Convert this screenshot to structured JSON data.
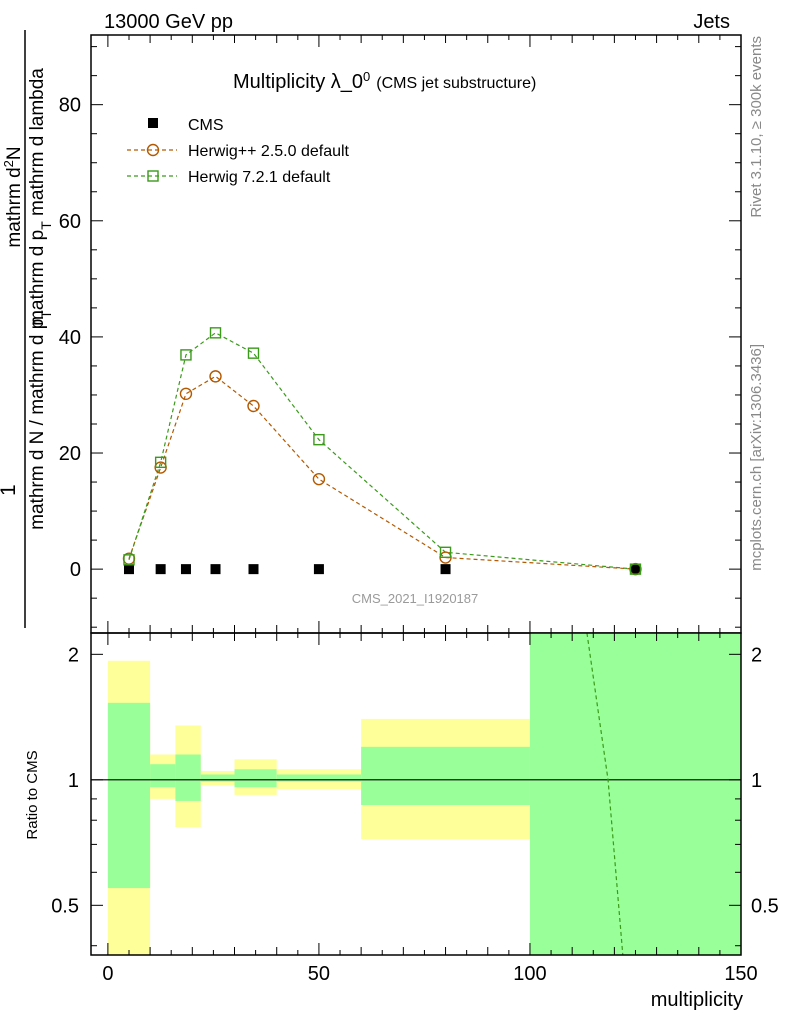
{
  "header": {
    "left": "13000 GeV pp",
    "right": "Jets"
  },
  "side_text": {
    "top": "Rivet 3.1.10, ≥ 300k events",
    "bottom": "mcplots.cern.ch [arXiv:1306.3436]"
  },
  "watermark": "CMS_2021_I1920187",
  "chart_data": [
    {
      "type": "line",
      "title": "Multiplicity λ_0",
      "title_superscript": "0",
      "subtitle": "(CMS jet substructure)",
      "ylabel_fraction": {
        "numerator_top": "1",
        "denominator_top": "mathrm d N / mathrm d p",
        "denominator_sub": "T",
        "numerator_main": "mathrm d",
        "numerator_sup": "2",
        "numerator_end": "N",
        "denominator_main": "mathrm d p",
        "denominator_main_sub": "T",
        "denominator_end": " mathrm d lambda"
      },
      "xlim": [
        -4,
        150
      ],
      "ylim": [
        -11,
        92
      ],
      "yticks": [
        0,
        20,
        40,
        60,
        80
      ],
      "legend_position": "top-left",
      "grid": false,
      "series": [
        {
          "name": "CMS",
          "color": "#000000",
          "marker": "filled-square",
          "x": [
            5,
            12.5,
            18.5,
            25.5,
            34.5,
            50,
            80,
            125
          ],
          "y": [
            0,
            0,
            0,
            0,
            0,
            0,
            0,
            0
          ]
        },
        {
          "name": "Herwig++ 2.5.0 default",
          "color": "#b35900",
          "marker": "open-circle",
          "x": [
            5,
            12.5,
            18.5,
            25.5,
            34.5,
            50,
            80,
            125
          ],
          "y": [
            1.8,
            17.5,
            30.2,
            33.2,
            28.1,
            15.5,
            2.0,
            0.0
          ]
        },
        {
          "name": "Herwig 7.2.1 default",
          "color": "#3a9a1a",
          "marker": "open-square",
          "x": [
            5,
            12.5,
            18.5,
            25.5,
            34.5,
            50,
            80,
            125
          ],
          "y": [
            1.6,
            18.4,
            36.9,
            40.7,
            37.2,
            22.3,
            2.9,
            0.0
          ]
        }
      ]
    },
    {
      "type": "area",
      "ylabel": "Ratio to CMS",
      "xlabel": "multiplicity",
      "xlim": [
        -4,
        150
      ],
      "ylim": [
        0.38,
        2.25
      ],
      "xticks": [
        0,
        50,
        100,
        150
      ],
      "yticks": [
        0.5,
        1,
        2
      ],
      "reference_line": 1,
      "bands": {
        "outer_color": "#ffff99",
        "inner_color": "#99ff99",
        "bins": [
          {
            "x0": 0,
            "x1": 10,
            "outer": [
              0.38,
              1.93
            ],
            "inner": [
              0.55,
              1.53
            ]
          },
          {
            "x0": 10,
            "x1": 16,
            "outer": [
              0.9,
              1.15
            ],
            "inner": [
              0.96,
              1.09
            ]
          },
          {
            "x0": 16,
            "x1": 22,
            "outer": [
              0.77,
              1.35
            ],
            "inner": [
              0.89,
              1.15
            ]
          },
          {
            "x0": 22,
            "x1": 30,
            "outer": [
              0.97,
              1.05
            ],
            "inner": [
              0.99,
              1.03
            ]
          },
          {
            "x0": 30,
            "x1": 40,
            "outer": [
              0.92,
              1.12
            ],
            "inner": [
              0.96,
              1.06
            ]
          },
          {
            "x0": 40,
            "x1": 60,
            "outer": [
              0.95,
              1.06
            ],
            "inner": [
              0.99,
              1.03
            ]
          },
          {
            "x0": 60,
            "x1": 100,
            "outer": [
              0.72,
              1.4
            ],
            "inner": [
              0.87,
              1.2
            ]
          },
          {
            "x0": 100,
            "x1": 150,
            "outer": [
              0.38,
              2.25
            ],
            "inner": [
              0.38,
              2.25
            ]
          }
        ]
      },
      "series": [
        {
          "name": "Herwig 7.2.1 default",
          "color": "#3a9a1a",
          "x": [
            113.5,
            118.5,
            122
          ],
          "y": [
            2.25,
            1.0,
            0.38
          ]
        }
      ]
    }
  ]
}
